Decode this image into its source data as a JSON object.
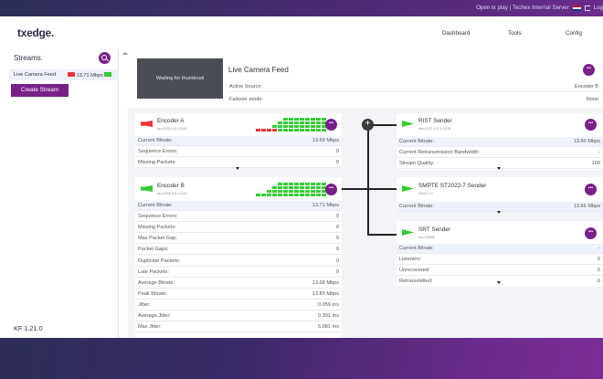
{
  "topbar": {
    "server_text": "Open tx play | Techex Internal Server",
    "logout_label": "Log"
  },
  "nav": {
    "logo": "txedge.",
    "links": [
      "Dashboard",
      "Tools",
      "Config"
    ]
  },
  "sidebar": {
    "title": "Streams.",
    "stream_item": {
      "name": "Live Camera Feed",
      "bitrate": "13.71 Mbps"
    },
    "create_button": "Create Stream",
    "version": "KF 1.21.0"
  },
  "stream": {
    "thumbnail_text": "Waiting for thumbnail",
    "title": "Live Camera Feed",
    "rows": [
      {
        "label": "Active Source:",
        "value": "Encoder B"
      },
      {
        "label": "Failover mode:",
        "value": "None"
      }
    ]
  },
  "encoder_a": {
    "name": "Encoder A",
    "address": "rtp://235.5.5.4:100",
    "rows": [
      {
        "label": "Current Bitrate:",
        "value": "13.69 Mbps"
      },
      {
        "label": "Sequence Errors:",
        "value": "0"
      },
      {
        "label": "Missing Packets:",
        "value": "0"
      }
    ]
  },
  "encoder_b": {
    "name": "Encoder B",
    "address": "rtp://235.5.5.4:110",
    "rows": [
      {
        "label": "Current Bitrate:",
        "value": "13.71 Mbps"
      },
      {
        "label": "Sequence Errors:",
        "value": "0"
      },
      {
        "label": "Missing Packets:",
        "value": "0"
      },
      {
        "label": "Max Packet Gap:",
        "value": "0"
      },
      {
        "label": "Packet Gaps:",
        "value": "0"
      },
      {
        "label": "Duplicate Packets:",
        "value": "0"
      },
      {
        "label": "Late Packets:",
        "value": "0"
      },
      {
        "label": "Average Bitrate:",
        "value": "13.68 Mbps"
      },
      {
        "label": "Peak Bitrate:",
        "value": "13.83 Mbps"
      },
      {
        "label": "Jitter:",
        "value": "0.059 ms"
      },
      {
        "label": "Average Jitter:",
        "value": "0.391 ms"
      },
      {
        "label": "Max Jitter:",
        "value": "5.081 ms"
      }
    ]
  },
  "rist": {
    "name": "RIST Sender",
    "address": "rist://127.0.0.1:1279",
    "rows": [
      {
        "label": "Current Bitrate:",
        "value": "13.50 Mbps"
      },
      {
        "label": "Current Retransmission Bandwidth:",
        "value": "-"
      },
      {
        "label": "Stream Quality:",
        "value": "100"
      }
    ]
  },
  "smpte": {
    "name": "SMPTE ST2022-7 Sender",
    "address": "2022-7://",
    "rows": [
      {
        "label": "Current Bitrate:",
        "value": "13.66 Mbps"
      }
    ]
  },
  "srt": {
    "name": "SRT Sender",
    "address": "srt://:9999",
    "rows": [
      {
        "label": "Current Bitrate:",
        "value": "-"
      },
      {
        "label": "Listeners:",
        "value": "0"
      },
      {
        "label": "Unrecovered:",
        "value": "0"
      },
      {
        "label": "Retransmitted:",
        "value": "0"
      }
    ]
  },
  "colors": {
    "accent": "#7a1f8a",
    "ok": "#33cc33",
    "error": "#ee3333"
  },
  "icons": [
    "search-icon",
    "more-icon",
    "plus-icon",
    "flag-icon",
    "logout-icon"
  ]
}
